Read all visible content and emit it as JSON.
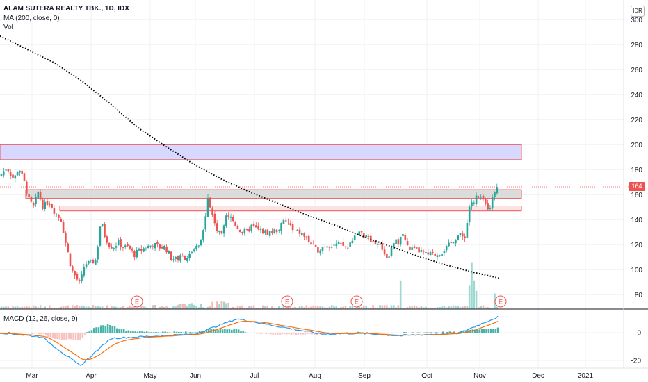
{
  "header": {
    "symbol_title": "ALAM SUTERA REALTY TBK., 1D, IDX",
    "ma_label": "MA (200, close, 0)",
    "vol_label": "Vol",
    "macd_label": "MACD (12, 26, close, 9)",
    "currency": "IDR",
    "last_price": "164"
  },
  "colors": {
    "up": "#26a69a",
    "down": "#ef5350",
    "vol_up": "#9fd8d1",
    "vol_down": "#f7b7b5",
    "ma": "#000000",
    "macd_line": "#2196f3",
    "signal_line": "#ff6d00",
    "zone_blue_fill": "#d1d4ff",
    "zone_red_border": "#ef5350",
    "zone_grey_fill": "#d6d6d6",
    "zone_pink_fill": "#fcdede",
    "grid": "#eef0f3"
  },
  "chart_data": {
    "type": "candlestick",
    "title": "ALAM SUTERA REALTY TBK., 1D, IDX",
    "price_axis": {
      "ticks": [
        80,
        100,
        120,
        140,
        160,
        180,
        200,
        220,
        240,
        260,
        280,
        300
      ],
      "range": [
        72,
        308
      ]
    },
    "time_axis": {
      "labels": [
        "Mar",
        "Apr",
        "May",
        "Jun",
        "Jul",
        "Aug",
        "Sep",
        "Oct",
        "Nov",
        "Dec",
        "2021"
      ]
    },
    "macd_axis": {
      "ticks": [
        -20,
        0
      ],
      "range": [
        -25,
        17
      ]
    },
    "path_points": [
      [
        0,
        175
      ],
      [
        10,
        182
      ],
      [
        20,
        172
      ],
      [
        27,
        182
      ],
      [
        35,
        170
      ],
      [
        42,
        155
      ],
      [
        48,
        150
      ],
      [
        55,
        162
      ],
      [
        62,
        150
      ],
      [
        70,
        155
      ],
      [
        80,
        145
      ],
      [
        88,
        140
      ],
      [
        95,
        120
      ],
      [
        103,
        100
      ],
      [
        110,
        93
      ],
      [
        115,
        88
      ],
      [
        122,
        105
      ],
      [
        130,
        105
      ],
      [
        138,
        108
      ],
      [
        145,
        140
      ],
      [
        150,
        128
      ],
      [
        157,
        120
      ],
      [
        163,
        118
      ],
      [
        170,
        122
      ],
      [
        178,
        118
      ],
      [
        185,
        118
      ],
      [
        193,
        112
      ],
      [
        200,
        115
      ],
      [
        210,
        118
      ],
      [
        220,
        120
      ],
      [
        230,
        118
      ],
      [
        238,
        118
      ],
      [
        245,
        110
      ],
      [
        252,
        108
      ],
      [
        260,
        110
      ],
      [
        268,
        110
      ],
      [
        275,
        112
      ],
      [
        283,
        118
      ],
      [
        290,
        122
      ],
      [
        295,
        140
      ],
      [
        298,
        162
      ],
      [
        302,
        150
      ],
      [
        308,
        140
      ],
      [
        313,
        130
      ],
      [
        318,
        128
      ],
      [
        325,
        145
      ],
      [
        332,
        142
      ],
      [
        340,
        135
      ],
      [
        348,
        130
      ],
      [
        355,
        130
      ],
      [
        362,
        135
      ],
      [
        370,
        132
      ],
      [
        380,
        130
      ],
      [
        390,
        130
      ],
      [
        400,
        132
      ],
      [
        408,
        138
      ],
      [
        415,
        138
      ],
      [
        422,
        130
      ],
      [
        430,
        130
      ],
      [
        440,
        126
      ],
      [
        448,
        120
      ],
      [
        455,
        115
      ],
      [
        462,
        118
      ],
      [
        470,
        120
      ],
      [
        478,
        120
      ],
      [
        486,
        120
      ],
      [
        494,
        119
      ],
      [
        500,
        117
      ],
      [
        507,
        125
      ],
      [
        514,
        130
      ],
      [
        520,
        128
      ],
      [
        527,
        127
      ],
      [
        534,
        122
      ],
      [
        541,
        122
      ],
      [
        548,
        118
      ],
      [
        552,
        115
      ],
      [
        557,
        108
      ],
      [
        562,
        115
      ],
      [
        568,
        122
      ],
      [
        574,
        122
      ],
      [
        578,
        130
      ],
      [
        582,
        125
      ],
      [
        586,
        118
      ],
      [
        590,
        117
      ],
      [
        597,
        115
      ],
      [
        604,
        115
      ],
      [
        612,
        112
      ],
      [
        620,
        112
      ],
      [
        628,
        112
      ],
      [
        636,
        115
      ],
      [
        644,
        118
      ],
      [
        652,
        124
      ],
      [
        660,
        128
      ],
      [
        666,
        126
      ],
      [
        670,
        128
      ],
      [
        674,
        148
      ],
      [
        677,
        155
      ],
      [
        682,
        152
      ],
      [
        686,
        160
      ],
      [
        690,
        155
      ],
      [
        694,
        157
      ],
      [
        698,
        152
      ],
      [
        702,
        150
      ],
      [
        706,
        152
      ],
      [
        710,
        160
      ],
      [
        714,
        168
      ],
      [
        718,
        164
      ]
    ],
    "ma200_points": [
      [
        0,
        287
      ],
      [
        40,
        276
      ],
      [
        80,
        265
      ],
      [
        120,
        250
      ],
      [
        160,
        232
      ],
      [
        200,
        213
      ],
      [
        240,
        198
      ],
      [
        280,
        184
      ],
      [
        320,
        172
      ],
      [
        360,
        162
      ],
      [
        400,
        153
      ],
      [
        440,
        144
      ],
      [
        480,
        136
      ],
      [
        520,
        127
      ],
      [
        560,
        119
      ],
      [
        600,
        111
      ],
      [
        640,
        104
      ],
      [
        680,
        98
      ],
      [
        720,
        93
      ]
    ],
    "zones": [
      {
        "name": "blue resistance zone",
        "low": 188,
        "high": 200,
        "x_from": 0,
        "x_to": 750
      },
      {
        "name": "grey zone",
        "low": 157,
        "high": 164,
        "x_from": 37,
        "x_to": 750
      },
      {
        "name": "pink support zone",
        "low": 147,
        "high": 151,
        "x_from": 86,
        "x_to": 750
      }
    ],
    "volume_spikes": [
      [
        576,
        0.55
      ],
      [
        674,
        0.45
      ],
      [
        677,
        0.9
      ],
      [
        682,
        0.55
      ],
      [
        686,
        0.35
      ],
      [
        710,
        0.3
      ]
    ],
    "earnings_markers": [
      "E",
      "E",
      "E",
      "E"
    ]
  }
}
